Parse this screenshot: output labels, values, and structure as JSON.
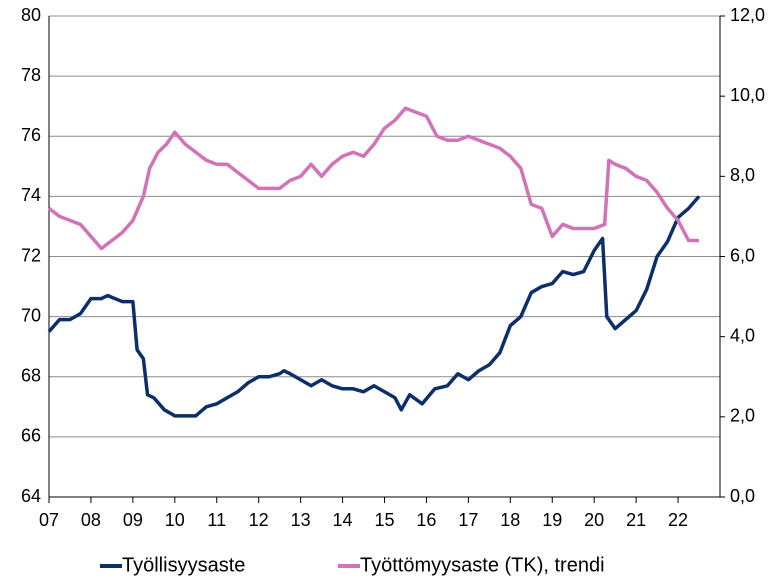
{
  "chart_data": {
    "type": "line",
    "xlim": [
      7,
      23
    ],
    "xticks": [
      {
        "value": 7,
        "label": "07"
      },
      {
        "value": 8,
        "label": "08"
      },
      {
        "value": 9,
        "label": "09"
      },
      10,
      11,
      12,
      13,
      14,
      15,
      16,
      17,
      18,
      19,
      20,
      21,
      22
    ],
    "ylim": [
      64,
      80
    ],
    "yticks": [
      64,
      66,
      68,
      70,
      72,
      74,
      76,
      78,
      80
    ],
    "y2lim": [
      0,
      12
    ],
    "y2ticks": [
      {
        "value": 0,
        "label": "0,0"
      },
      {
        "value": 2,
        "label": "2,0"
      },
      {
        "value": 4,
        "label": "4,0"
      },
      {
        "value": 6,
        "label": "6,0"
      },
      {
        "value": 8,
        "label": "8,0"
      },
      {
        "value": 10,
        "label": "10,0"
      },
      {
        "value": 12,
        "label": "12,0"
      }
    ],
    "grid": true,
    "legend": "bottom",
    "series": [
      {
        "name": "Työllisyysaste",
        "color": "#0c2f6a",
        "x": [
          7.0,
          7.25,
          7.5,
          7.75,
          8.0,
          8.25,
          8.4,
          8.75,
          9.0,
          9.1,
          9.25,
          9.35,
          9.5,
          9.75,
          10.0,
          10.5,
          10.75,
          11.0,
          11.25,
          11.5,
          11.75,
          12.0,
          12.25,
          12.5,
          12.6,
          12.75,
          13.0,
          13.25,
          13.5,
          13.75,
          14.0,
          14.25,
          14.5,
          14.75,
          15.0,
          15.25,
          15.4,
          15.6,
          15.9,
          16.2,
          16.5,
          16.75,
          17.0,
          17.25,
          17.5,
          17.75,
          18.0,
          18.25,
          18.5,
          18.75,
          19.0,
          19.25,
          19.5,
          19.75,
          20.0,
          20.2,
          20.3,
          20.5,
          20.75,
          21.0,
          21.25,
          21.5,
          21.75,
          22.0,
          22.25,
          22.5
        ],
        "values": [
          69.5,
          69.9,
          69.9,
          70.1,
          70.6,
          70.6,
          70.7,
          70.5,
          70.5,
          68.9,
          68.6,
          67.4,
          67.3,
          66.9,
          66.7,
          66.7,
          67.0,
          67.1,
          67.3,
          67.5,
          67.8,
          68.0,
          68.0,
          68.1,
          68.2,
          68.1,
          67.9,
          67.7,
          67.9,
          67.7,
          67.6,
          67.6,
          67.5,
          67.7,
          67.5,
          67.3,
          66.9,
          67.4,
          67.1,
          67.6,
          67.7,
          68.1,
          67.9,
          68.2,
          68.4,
          68.8,
          69.7,
          70.0,
          70.8,
          71.0,
          71.1,
          71.5,
          71.4,
          71.5,
          72.2,
          72.6,
          70.0,
          69.6,
          69.9,
          70.2,
          70.9,
          72.0,
          72.5,
          73.3,
          73.6,
          74.0
        ]
      },
      {
        "name": "Työttömyysaste (TK), trendi",
        "color": "#d173b9",
        "axis": "y2",
        "x": [
          7.0,
          7.25,
          7.5,
          7.75,
          8.0,
          8.25,
          8.5,
          8.75,
          9.0,
          9.25,
          9.4,
          9.6,
          9.8,
          10.0,
          10.25,
          10.5,
          10.75,
          11.0,
          11.25,
          11.5,
          11.75,
          12.0,
          12.25,
          12.5,
          12.75,
          13.0,
          13.25,
          13.5,
          13.75,
          14.0,
          14.25,
          14.5,
          14.75,
          15.0,
          15.25,
          15.5,
          15.75,
          16.0,
          16.25,
          16.5,
          16.75,
          17.0,
          17.25,
          17.5,
          17.75,
          18.0,
          18.25,
          18.5,
          18.75,
          19.0,
          19.25,
          19.5,
          19.75,
          20.0,
          20.25,
          20.35,
          20.5,
          20.75,
          21.0,
          21.25,
          21.5,
          21.75,
          22.0,
          22.25,
          22.5
        ],
        "values": [
          7.2,
          7.0,
          6.9,
          6.8,
          6.5,
          6.2,
          6.4,
          6.6,
          6.9,
          7.5,
          8.2,
          8.6,
          8.8,
          9.1,
          8.8,
          8.6,
          8.4,
          8.3,
          8.3,
          8.1,
          7.9,
          7.7,
          7.7,
          7.7,
          7.9,
          8.0,
          8.3,
          8.0,
          8.3,
          8.5,
          8.6,
          8.5,
          8.8,
          9.2,
          9.4,
          9.7,
          9.6,
          9.5,
          9.0,
          8.9,
          8.9,
          9.0,
          8.9,
          8.8,
          8.7,
          8.5,
          8.2,
          7.3,
          7.2,
          6.5,
          6.8,
          6.7,
          6.7,
          6.7,
          6.8,
          8.4,
          8.3,
          8.2,
          8.0,
          7.9,
          7.6,
          7.2,
          6.9,
          6.4,
          6.4
        ]
      }
    ]
  }
}
